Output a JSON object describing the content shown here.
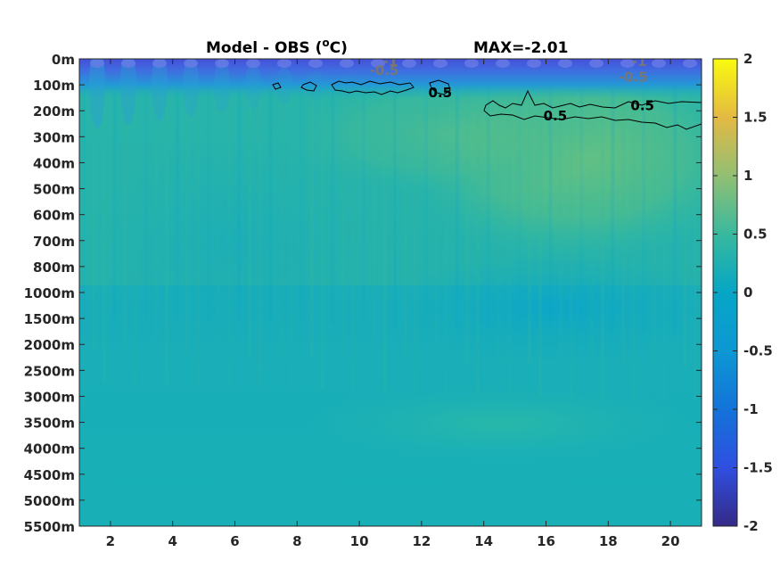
{
  "title": {
    "left": "Model - OBS (",
    "unit_super": "o",
    "unit_after": "C)",
    "right": "MAX=-2.01"
  },
  "chart_data": {
    "type": "heatmap",
    "xlabel": "",
    "ylabel": "",
    "xlim": [
      1,
      21
    ],
    "x_ticks": [
      2,
      4,
      6,
      8,
      10,
      12,
      14,
      16,
      18,
      20
    ],
    "y_tick_labels": [
      "0m",
      "100m",
      "200m",
      "300m",
      "400m",
      "500m",
      "600m",
      "700m",
      "800m",
      "1000m",
      "1500m",
      "2000m",
      "2500m",
      "3000m",
      "3500m",
      "4000m",
      "4500m",
      "5000m",
      "5500m"
    ],
    "colorbar": {
      "range": [
        -2,
        2
      ],
      "ticks": [
        "2",
        "1.5",
        "1",
        "0.5",
        "0",
        "-0.5",
        "-1",
        "-1.5",
        "-2"
      ],
      "colormap": "parula"
    },
    "contour_labels": [
      {
        "text": "-1",
        "x": 11.0,
        "depth_row": 0.1,
        "color": "#777777"
      },
      {
        "text": "-0.5",
        "x": 10.8,
        "depth_row": 0.45,
        "color": "#777777"
      },
      {
        "text": "0.5",
        "x": 12.6,
        "depth_row": 1.3,
        "color": "#000000"
      },
      {
        "text": "0.5",
        "x": 16.3,
        "depth_row": 2.2,
        "color": "#000000"
      },
      {
        "text": "0.5",
        "x": 19.1,
        "depth_row": 1.8,
        "color": "#000000"
      },
      {
        "text": "-1",
        "x": 19.0,
        "depth_row": 0.1,
        "color": "#777777"
      },
      {
        "text": "-0.5",
        "x": 18.8,
        "depth_row": 0.7,
        "color": "#777777"
      }
    ],
    "field_summary": {
      "surface_0_50m": -1.0,
      "near_surface_100m": -0.4,
      "subsurface_200_300m_east": 0.4,
      "interior_mean": -0.05,
      "deep_mean": 0.0,
      "min_value": -2.01
    },
    "grid": false
  }
}
